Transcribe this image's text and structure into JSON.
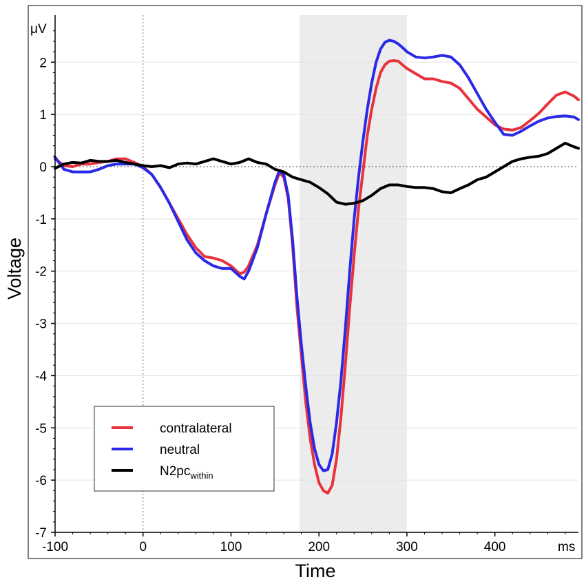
{
  "chart_data": {
    "type": "line",
    "xlabel": "Time",
    "ylabel": "Voltage",
    "x_unit": "ms",
    "y_unit": "μV",
    "xlim": [
      -100,
      495
    ],
    "ylim": [
      -7,
      2.9
    ],
    "x_ticks": [
      -100,
      0,
      100,
      200,
      300,
      400
    ],
    "y_ticks": [
      2,
      1,
      0,
      -1,
      -2,
      -3,
      -4,
      -5,
      -6,
      -7
    ],
    "shaded_region": [
      178,
      300
    ],
    "grid": "horizontal",
    "reference_lines": {
      "y_zero": true,
      "x_zero": true
    },
    "legend_position": "bottom-left",
    "series": [
      {
        "name": "contralateral",
        "legend_main": "contralateral",
        "legend_sub": "",
        "color": "#e8323c",
        "points": [
          [
            -100,
            0.15
          ],
          [
            -90,
            0.02
          ],
          [
            -80,
            0.0
          ],
          [
            -70,
            0.05
          ],
          [
            -60,
            0.05
          ],
          [
            -50,
            0.08
          ],
          [
            -40,
            0.1
          ],
          [
            -30,
            0.15
          ],
          [
            -20,
            0.15
          ],
          [
            -10,
            0.08
          ],
          [
            0,
            0.0
          ],
          [
            10,
            -0.15
          ],
          [
            20,
            -0.4
          ],
          [
            30,
            -0.7
          ],
          [
            40,
            -1.0
          ],
          [
            50,
            -1.3
          ],
          [
            60,
            -1.55
          ],
          [
            70,
            -1.72
          ],
          [
            80,
            -1.75
          ],
          [
            90,
            -1.8
          ],
          [
            100,
            -1.9
          ],
          [
            110,
            -2.05
          ],
          [
            115,
            -2.02
          ],
          [
            120,
            -1.9
          ],
          [
            130,
            -1.5
          ],
          [
            140,
            -0.9
          ],
          [
            150,
            -0.35
          ],
          [
            155,
            -0.12
          ],
          [
            160,
            -0.2
          ],
          [
            165,
            -0.6
          ],
          [
            170,
            -1.5
          ],
          [
            175,
            -2.7
          ],
          [
            180,
            -3.6
          ],
          [
            185,
            -4.5
          ],
          [
            190,
            -5.2
          ],
          [
            195,
            -5.7
          ],
          [
            200,
            -6.05
          ],
          [
            205,
            -6.2
          ],
          [
            210,
            -6.25
          ],
          [
            215,
            -6.1
          ],
          [
            220,
            -5.6
          ],
          [
            225,
            -4.8
          ],
          [
            230,
            -3.8
          ],
          [
            235,
            -2.7
          ],
          [
            240,
            -1.7
          ],
          [
            245,
            -0.8
          ],
          [
            250,
            -0.1
          ],
          [
            255,
            0.6
          ],
          [
            260,
            1.1
          ],
          [
            265,
            1.5
          ],
          [
            270,
            1.8
          ],
          [
            275,
            1.95
          ],
          [
            280,
            2.02
          ],
          [
            285,
            2.03
          ],
          [
            290,
            2.02
          ],
          [
            295,
            1.95
          ],
          [
            300,
            1.88
          ],
          [
            310,
            1.78
          ],
          [
            320,
            1.68
          ],
          [
            330,
            1.68
          ],
          [
            340,
            1.63
          ],
          [
            350,
            1.6
          ],
          [
            360,
            1.5
          ],
          [
            370,
            1.3
          ],
          [
            380,
            1.1
          ],
          [
            390,
            0.95
          ],
          [
            400,
            0.8
          ],
          [
            410,
            0.72
          ],
          [
            420,
            0.7
          ],
          [
            430,
            0.75
          ],
          [
            440,
            0.88
          ],
          [
            450,
            1.02
          ],
          [
            460,
            1.2
          ],
          [
            470,
            1.37
          ],
          [
            480,
            1.43
          ],
          [
            490,
            1.35
          ],
          [
            495,
            1.28
          ]
        ]
      },
      {
        "name": "neutral",
        "legend_main": "neutral",
        "legend_sub": "",
        "color": "#2a2ae6",
        "points": [
          [
            -100,
            0.18
          ],
          [
            -90,
            -0.05
          ],
          [
            -80,
            -0.1
          ],
          [
            -70,
            -0.1
          ],
          [
            -60,
            -0.1
          ],
          [
            -50,
            -0.05
          ],
          [
            -40,
            0.02
          ],
          [
            -30,
            0.05
          ],
          [
            -20,
            0.05
          ],
          [
            -10,
            0.05
          ],
          [
            0,
            -0.02
          ],
          [
            10,
            -0.15
          ],
          [
            20,
            -0.4
          ],
          [
            30,
            -0.7
          ],
          [
            40,
            -1.05
          ],
          [
            50,
            -1.4
          ],
          [
            60,
            -1.65
          ],
          [
            70,
            -1.8
          ],
          [
            80,
            -1.9
          ],
          [
            90,
            -1.95
          ],
          [
            100,
            -1.95
          ],
          [
            110,
            -2.1
          ],
          [
            115,
            -2.15
          ],
          [
            120,
            -2.0
          ],
          [
            130,
            -1.55
          ],
          [
            140,
            -0.9
          ],
          [
            150,
            -0.3
          ],
          [
            155,
            -0.08
          ],
          [
            160,
            -0.15
          ],
          [
            165,
            -0.55
          ],
          [
            170,
            -1.4
          ],
          [
            175,
            -2.5
          ],
          [
            180,
            -3.4
          ],
          [
            185,
            -4.2
          ],
          [
            190,
            -4.9
          ],
          [
            195,
            -5.4
          ],
          [
            200,
            -5.7
          ],
          [
            205,
            -5.82
          ],
          [
            210,
            -5.8
          ],
          [
            215,
            -5.5
          ],
          [
            220,
            -4.9
          ],
          [
            225,
            -4.1
          ],
          [
            230,
            -3.1
          ],
          [
            235,
            -2.0
          ],
          [
            240,
            -1.0
          ],
          [
            245,
            -0.2
          ],
          [
            250,
            0.5
          ],
          [
            255,
            1.1
          ],
          [
            260,
            1.6
          ],
          [
            265,
            2.0
          ],
          [
            270,
            2.25
          ],
          [
            275,
            2.38
          ],
          [
            280,
            2.42
          ],
          [
            285,
            2.4
          ],
          [
            290,
            2.35
          ],
          [
            295,
            2.28
          ],
          [
            300,
            2.2
          ],
          [
            310,
            2.1
          ],
          [
            320,
            2.08
          ],
          [
            330,
            2.1
          ],
          [
            340,
            2.13
          ],
          [
            350,
            2.1
          ],
          [
            360,
            1.95
          ],
          [
            370,
            1.7
          ],
          [
            380,
            1.4
          ],
          [
            390,
            1.1
          ],
          [
            400,
            0.85
          ],
          [
            410,
            0.62
          ],
          [
            420,
            0.6
          ],
          [
            430,
            0.68
          ],
          [
            440,
            0.78
          ],
          [
            450,
            0.87
          ],
          [
            460,
            0.93
          ],
          [
            470,
            0.96
          ],
          [
            480,
            0.97
          ],
          [
            490,
            0.95
          ],
          [
            495,
            0.9
          ]
        ]
      },
      {
        "name": "N2pcwithin",
        "legend_main": "N2pc",
        "legend_sub": "within",
        "color": "#000000",
        "points": [
          [
            -100,
            -0.03
          ],
          [
            -90,
            0.05
          ],
          [
            -80,
            0.08
          ],
          [
            -70,
            0.07
          ],
          [
            -60,
            0.12
          ],
          [
            -50,
            0.1
          ],
          [
            -40,
            0.1
          ],
          [
            -30,
            0.12
          ],
          [
            -20,
            0.08
          ],
          [
            -10,
            0.05
          ],
          [
            0,
            0.02
          ],
          [
            10,
            0.0
          ],
          [
            20,
            0.02
          ],
          [
            30,
            -0.02
          ],
          [
            40,
            0.05
          ],
          [
            50,
            0.07
          ],
          [
            60,
            0.05
          ],
          [
            70,
            0.1
          ],
          [
            80,
            0.15
          ],
          [
            90,
            0.1
          ],
          [
            100,
            0.05
          ],
          [
            110,
            0.08
          ],
          [
            120,
            0.15
          ],
          [
            130,
            0.08
          ],
          [
            140,
            0.05
          ],
          [
            150,
            -0.05
          ],
          [
            160,
            -0.1
          ],
          [
            170,
            -0.2
          ],
          [
            180,
            -0.25
          ],
          [
            190,
            -0.3
          ],
          [
            200,
            -0.4
          ],
          [
            210,
            -0.52
          ],
          [
            220,
            -0.68
          ],
          [
            230,
            -0.72
          ],
          [
            240,
            -0.7
          ],
          [
            250,
            -0.65
          ],
          [
            260,
            -0.55
          ],
          [
            270,
            -0.42
          ],
          [
            280,
            -0.35
          ],
          [
            290,
            -0.35
          ],
          [
            300,
            -0.38
          ],
          [
            310,
            -0.4
          ],
          [
            320,
            -0.4
          ],
          [
            330,
            -0.42
          ],
          [
            340,
            -0.48
          ],
          [
            350,
            -0.5
          ],
          [
            360,
            -0.42
          ],
          [
            370,
            -0.35
          ],
          [
            380,
            -0.25
          ],
          [
            390,
            -0.2
          ],
          [
            400,
            -0.1
          ],
          [
            410,
            0.0
          ],
          [
            420,
            0.1
          ],
          [
            430,
            0.15
          ],
          [
            440,
            0.18
          ],
          [
            450,
            0.2
          ],
          [
            460,
            0.25
          ],
          [
            470,
            0.35
          ],
          [
            480,
            0.45
          ],
          [
            490,
            0.38
          ],
          [
            495,
            0.35
          ]
        ]
      }
    ]
  }
}
